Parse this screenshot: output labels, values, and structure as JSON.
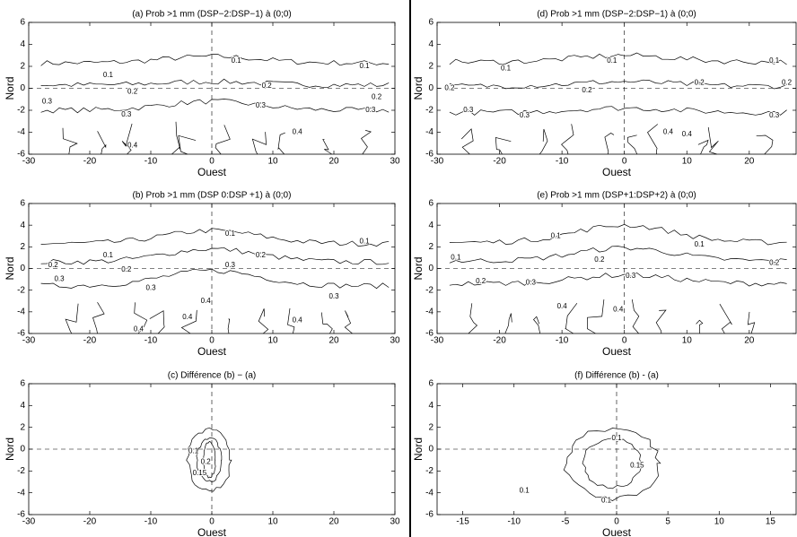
{
  "chart_data": [
    {
      "type": "contour",
      "title": "(a) Prob >1 mm (DSP−2:DSP−1) à (0;0)",
      "xlabel": "Ouest",
      "ylabel": "Nord",
      "xlim": [
        -30,
        30
      ],
      "ylim": [
        -6,
        6
      ],
      "xticks": [
        -30,
        -20,
        -10,
        0,
        10,
        20,
        30
      ],
      "yticks": [
        -6,
        -4,
        -2,
        0,
        2,
        4,
        6
      ],
      "contour_labels": [
        0.1,
        0.1,
        0.1,
        0.2,
        0.2,
        0.2,
        0.3,
        0.3,
        0.3,
        0.3,
        0.4,
        0.4
      ]
    },
    {
      "type": "contour",
      "title": "(b) Prob >1 mm (DSP 0:DSP +1) à (0;0)",
      "xlabel": "Ouest",
      "ylabel": "Nord",
      "xlim": [
        -30,
        30
      ],
      "ylim": [
        -6,
        6
      ],
      "xticks": [
        -30,
        -20,
        -10,
        0,
        10,
        20,
        30
      ],
      "yticks": [
        -6,
        -4,
        -2,
        0,
        2,
        4,
        6
      ],
      "contour_labels": [
        0.1,
        0.1,
        0.1,
        0.2,
        0.2,
        0.2,
        0.3,
        0.3,
        0.3,
        0.3,
        0.4,
        0.4,
        0.4,
        0.4
      ]
    },
    {
      "type": "contour",
      "title": "(c) Différence (b) − (a)",
      "xlabel": "Ouest",
      "ylabel": "Nord",
      "xlim": [
        -30,
        30
      ],
      "ylim": [
        -6,
        6
      ],
      "xticks": [
        -30,
        -20,
        -10,
        0,
        10,
        20,
        30
      ],
      "yticks": [
        -6,
        -4,
        -2,
        0,
        2,
        4,
        6
      ],
      "contour_labels": [
        0.1,
        0.2,
        0.15
      ]
    },
    {
      "type": "contour",
      "title": "(d) Prob >1 mm (DSP−2:DSP−1) à (0;0)",
      "xlabel": "Ouest",
      "ylabel": "Nord",
      "xlim": [
        -30,
        27.5
      ],
      "ylim": [
        -6,
        6
      ],
      "xticks": [
        -30,
        -20,
        -10,
        0,
        10,
        20
      ],
      "yticks": [
        -6,
        -4,
        -2,
        0,
        2,
        4,
        6
      ],
      "contour_labels": [
        0.1,
        0.1,
        0.1,
        0.2,
        0.2,
        0.2,
        0.2,
        0.3,
        0.3,
        0.3,
        0.4,
        0.4
      ]
    },
    {
      "type": "contour",
      "title": "(e) Prob >1 mm (DSP+1:DSP+2) à (0;0)",
      "xlabel": "Ouest",
      "ylabel": "Nord",
      "xlim": [
        -30,
        27.5
      ],
      "ylim": [
        -6,
        6
      ],
      "xticks": [
        -30,
        -20,
        -10,
        0,
        10,
        20
      ],
      "yticks": [
        -6,
        -4,
        -2,
        0,
        2,
        4,
        6
      ],
      "contour_labels": [
        0.1,
        0.1,
        0.1,
        0.2,
        0.2,
        0.2,
        0.3,
        0.3,
        0.4,
        0.4
      ]
    },
    {
      "type": "contour",
      "title": "(f) Différence (b) - (a)",
      "xlabel": "Ouest",
      "ylabel": "Nord",
      "xlim": [
        -17.5,
        17.5
      ],
      "ylim": [
        -6,
        6
      ],
      "xticks": [
        -15,
        -10,
        -5,
        0,
        5,
        10,
        15
      ],
      "yticks": [
        -6,
        -4,
        -2,
        0,
        2,
        4,
        6
      ],
      "contour_labels": [
        0.1,
        0.15,
        0.1,
        0.1
      ]
    }
  ]
}
